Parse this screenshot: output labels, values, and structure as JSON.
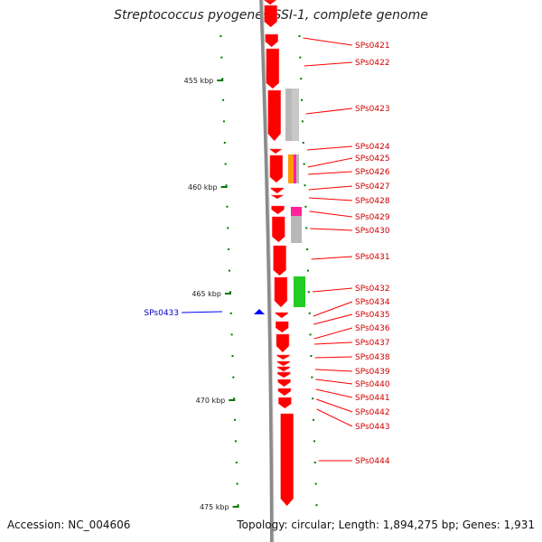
{
  "title": "Streptococcus pyogenes SSI-1, complete genome",
  "accession": "Accession: NC_004606",
  "topology": "Topology: circular; Length: 1,894,275 bp; Genes: 1,931",
  "colors": {
    "forward_gene": "#ff0000",
    "reverse_gene": "#0000ff",
    "backbone": "#7f7f7f",
    "tick": "#007700",
    "cog_gray": "#b8b8b8",
    "cog_green": "#22cc22",
    "cog_orange": "#ff9900",
    "cog_magenta": "#ff2299"
  },
  "ticks": [
    {
      "label": "455 kbp",
      "value": 455
    },
    {
      "label": "460 kbp",
      "value": 460
    },
    {
      "label": "465 kbp",
      "value": 465
    },
    {
      "label": "470 kbp",
      "value": 470
    },
    {
      "label": "475 kbp",
      "value": 475
    }
  ],
  "genes_forward": [
    "SPs0421",
    "SPs0422",
    "SPs0423",
    "SPs0424",
    "SPs0425",
    "SPs0426",
    "SPs0427",
    "SPs0428",
    "SPs0429",
    "SPs0430",
    "SPs0431",
    "SPs0432",
    "SPs0434",
    "SPs0435",
    "SPs0436",
    "SPs0437",
    "SPs0438",
    "SPs0439",
    "SPs0440",
    "SPs0441",
    "SPs0442",
    "SPs0443",
    "SPs0444"
  ],
  "genes_reverse": [
    "SPs0433"
  ]
}
